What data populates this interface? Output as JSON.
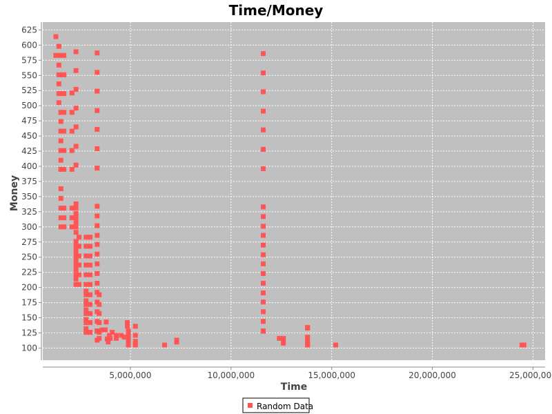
{
  "chart_data": {
    "type": "scatter",
    "title": "Time/Money",
    "xlabel": "Time",
    "ylabel": "Money",
    "xlim": [
      650000,
      25600000
    ],
    "ylim": [
      80,
      638
    ],
    "x_ticks": [
      5000000,
      10000000,
      15000000,
      20000000,
      25000000
    ],
    "x_tick_labels": [
      "5,000,000",
      "10,000,000",
      "15,000,000",
      "20,000,000",
      "25,000,000"
    ],
    "y_ticks": [
      100,
      125,
      150,
      175,
      200,
      225,
      250,
      275,
      300,
      325,
      350,
      375,
      400,
      425,
      450,
      475,
      500,
      525,
      550,
      575,
      600,
      625
    ],
    "grid": true,
    "legend_position": "bottom-center",
    "colors": {
      "series": "#ff5555",
      "plot_background": "#c0c0c0",
      "grid": "#ffffff"
    },
    "series": [
      {
        "name": "Random Data",
        "x": [
          1300000,
          1300000,
          1450000,
          1450000,
          1450000,
          1450000,
          1450000,
          1450000,
          1450000,
          1550000,
          1550000,
          1550000,
          1550000,
          1550000,
          1550000,
          1550000,
          1550000,
          1550000,
          1550000,
          1550000,
          1550000,
          1550000,
          1550000,
          1550000,
          1550000,
          1550000,
          1550000,
          1550000,
          1700000,
          1700000,
          1700000,
          1700000,
          1700000,
          1700000,
          1700000,
          1700000,
          1700000,
          1700000,
          1700000,
          2100000,
          2100000,
          2100000,
          2100000,
          2100000,
          2100000,
          2100000,
          2100000,
          2300000,
          2300000,
          2300000,
          2300000,
          2300000,
          2300000,
          2300000,
          2300000,
          2300000,
          2300000,
          2300000,
          2300000,
          2300000,
          2300000,
          2300000,
          2300000,
          2300000,
          2300000,
          2300000,
          2300000,
          2300000,
          2300000,
          2300000,
          2300000,
          2450000,
          2450000,
          2450000,
          2450000,
          2450000,
          2450000,
          2800000,
          2800000,
          2800000,
          2800000,
          2800000,
          2800000,
          2800000,
          2800000,
          2800000,
          2800000,
          2800000,
          2800000,
          2800000,
          2800000,
          2800000,
          2800000,
          2800000,
          3000000,
          3000000,
          3000000,
          3000000,
          3000000,
          3000000,
          3000000,
          3000000,
          3000000,
          3000000,
          3000000,
          3000000,
          3000000,
          3350000,
          3350000,
          3350000,
          3350000,
          3350000,
          3350000,
          3350000,
          3350000,
          3350000,
          3350000,
          3350000,
          3350000,
          3350000,
          3350000,
          3350000,
          3350000,
          3350000,
          3350000,
          3350000,
          3350000,
          3350000,
          3350000,
          3350000,
          3350000,
          3350000,
          3350000,
          3450000,
          3450000,
          3450000,
          3450000,
          3450000,
          3450000,
          3450000,
          3450000,
          3600000,
          3750000,
          3800000,
          3850000,
          3900000,
          3950000,
          4000000,
          4100000,
          4300000,
          4300000,
          4550000,
          4700000,
          4850000,
          4850000,
          4900000,
          4900000,
          4900000,
          4900000,
          4900000,
          4900000,
          4900000,
          5250000,
          5250000,
          5250000,
          5250000,
          5250000,
          6700000,
          7300000,
          7300000,
          11600000,
          11600000,
          11600000,
          11600000,
          11600000,
          11600000,
          11600000,
          11600000,
          11600000,
          11600000,
          11600000,
          11600000,
          11600000,
          11600000,
          11600000,
          11600000,
          11600000,
          11600000,
          11600000,
          11600000,
          11600000,
          11600000,
          11600000,
          11600000,
          11600000,
          11600000,
          12400000,
          12600000,
          12600000,
          12600000,
          13800000,
          13800000,
          13800000,
          13800000,
          13800000,
          13800000,
          13800000,
          13800000,
          15200000,
          24450000,
          24550000
        ],
        "y": [
          614,
          583,
          598,
          583,
          567,
          551,
          536,
          520,
          505,
          583,
          551,
          520,
          489,
          474,
          458,
          442,
          426,
          410,
          395,
          363,
          347,
          331,
          315,
          300,
          489,
          458,
          426,
          395,
          583,
          551,
          520,
          489,
          458,
          426,
          395,
          331,
          315,
          300,
          300,
          521,
          489,
          458,
          426,
          395,
          331,
          315,
          300,
          589,
          558,
          527,
          496,
          465,
          433,
          402,
          338,
          322,
          307,
          291,
          276,
          260,
          245,
          229,
          214,
          331,
          315,
          300,
          268,
          252,
          237,
          221,
          205,
          283,
          268,
          252,
          237,
          221,
          205,
          283,
          268,
          252,
          237,
          221,
          205,
          194,
          188,
          178,
          172,
          163,
          157,
          147,
          142,
          132,
          128,
          126,
          283,
          268,
          252,
          237,
          221,
          205,
          188,
          172,
          157,
          142,
          126,
          126,
          126,
          587,
          555,
          524,
          492,
          461,
          429,
          397,
          334,
          318,
          302,
          286,
          271,
          255,
          239,
          223,
          207,
          192,
          176,
          160,
          144,
          128,
          113,
          128,
          128,
          128,
          128,
          188,
          172,
          157,
          142,
          126,
          116,
          128,
          128,
          130,
          130,
          143,
          115,
          110,
          121,
          116,
          126,
          121,
          116,
          121,
          118,
          142,
          136,
          128,
          121,
          111,
          105,
          126,
          117,
          106,
          136,
          121,
          111,
          105,
          106,
          105,
          113,
          110,
          586,
          554,
          523,
          491,
          460,
          428,
          396,
          333,
          317,
          301,
          286,
          270,
          254,
          239,
          223,
          207,
          191,
          176,
          160,
          144,
          128,
          128,
          128,
          128,
          128,
          128,
          116,
          116,
          110,
          108,
          134,
          133,
          118,
          116,
          110,
          107,
          105,
          105,
          105,
          105,
          105
        ]
      }
    ]
  }
}
